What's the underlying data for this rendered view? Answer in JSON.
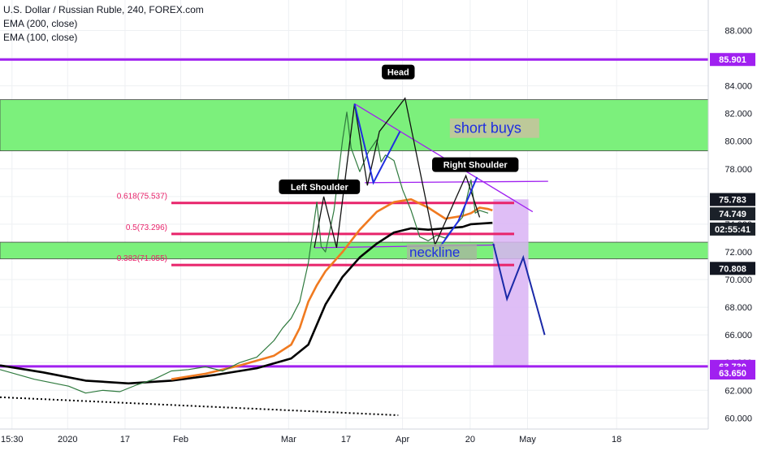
{
  "header": {
    "title": "U.S. Dollar / Russian Ruble, 240, FOREX.com",
    "indicators": [
      "EMA (200, close)",
      "EMA (100, close)"
    ]
  },
  "colors": {
    "zone_fill": "#7cf07c",
    "purple": "#a020f0",
    "pink": "#e8246b",
    "ema200": "#000000",
    "ema100": "#f07a20",
    "pattern": "#1f2ee0",
    "projection_fill": "#d9b3f5",
    "price_tag_dark": "#131722",
    "current_price": "#1b2129"
  },
  "chart_data": {
    "type": "line",
    "title": "U.S. Dollar / Russian Ruble, 240, FOREX.com",
    "ylim": [
      59.2,
      90.2
    ],
    "xlim": [
      0,
      82.7
    ],
    "y_ticks": [
      60,
      62,
      64,
      66,
      68,
      70,
      72,
      74,
      76,
      78,
      80,
      82,
      84,
      86,
      88
    ],
    "x_ticks": [
      {
        "label": "15:30",
        "x": 1.4
      },
      {
        "label": "2020",
        "x": 7.9
      },
      {
        "label": "17",
        "x": 14.6
      },
      {
        "label": "Feb",
        "x": 21.1
      },
      {
        "label": "Mar",
        "x": 33.7
      },
      {
        "label": "17",
        "x": 40.4
      },
      {
        "label": "Apr",
        "x": 47.0
      },
      {
        "label": "20",
        "x": 54.9
      },
      {
        "label": "May",
        "x": 61.6
      },
      {
        "label": "18",
        "x": 72.0
      }
    ],
    "grid": true,
    "series": [
      {
        "name": "EMA (200, close)",
        "x": [
          0,
          5,
          10,
          15,
          20,
          25,
          30,
          34,
          36,
          38,
          40,
          42,
          44,
          46,
          48,
          50,
          52,
          54,
          55,
          57.5
        ],
        "y": [
          63.8,
          63.3,
          62.7,
          62.5,
          62.7,
          63.1,
          63.6,
          64.3,
          65.3,
          68.2,
          70.2,
          71.6,
          72.6,
          73.4,
          73.7,
          73.6,
          73.7,
          73.8,
          74.0,
          74.1
        ]
      },
      {
        "name": "EMA (100, close)",
        "x": [
          20,
          24,
          28,
          32,
          34,
          35,
          36,
          37,
          38,
          40,
          42,
          44,
          46,
          48,
          50,
          52,
          54,
          55,
          56,
          57,
          57.5
        ],
        "y": [
          62.8,
          63.2,
          63.8,
          64.5,
          65.3,
          66.5,
          68.4,
          69.6,
          70.6,
          72.0,
          73.6,
          74.9,
          75.6,
          75.8,
          75.2,
          74.4,
          74.6,
          74.8,
          75.2,
          75.1,
          75.0
        ]
      },
      {
        "name": "USD/RUB",
        "x": [
          0,
          4,
          8,
          10,
          12,
          14,
          16,
          18,
          20,
          22,
          24,
          26,
          28,
          30,
          31,
          32,
          33,
          34,
          35,
          36,
          37,
          37.5,
          38,
          39,
          40,
          40.5,
          41,
          42,
          43,
          44,
          44.5,
          45,
          46,
          47,
          48,
          49,
          50,
          51,
          52,
          53,
          54,
          55,
          55.5,
          56,
          57
        ],
        "y": [
          63.5,
          62.8,
          62.3,
          61.8,
          62.0,
          61.9,
          62.4,
          62.8,
          63.4,
          63.5,
          63.7,
          63.4,
          64.0,
          64.4,
          65.0,
          65.6,
          66.5,
          67.2,
          68.4,
          71.2,
          75.6,
          72.4,
          72.0,
          75.0,
          80.1,
          82.1,
          79.5,
          77.8,
          79.2,
          80.1,
          78.5,
          79.0,
          78.6,
          76.5,
          75.0,
          73.1,
          72.8,
          73.2,
          73.0,
          73.8,
          74.5,
          77.2,
          74.8,
          75.0,
          74.8
        ]
      }
    ],
    "horizontal_levels": [
      {
        "kind": "purple",
        "price": 85.901
      },
      {
        "kind": "purple",
        "price": 63.73
      },
      {
        "kind": "fib",
        "price": 75.537,
        "label": "0.618(75.537)"
      },
      {
        "kind": "fib",
        "price": 73.296,
        "label": "0.5(73.296)"
      },
      {
        "kind": "fib",
        "price": 71.055,
        "label": "0.382(71.055)"
      }
    ],
    "zones": [
      {
        "y0": 79.3,
        "y1": 83.0
      },
      {
        "y0": 71.5,
        "y1": 72.7
      }
    ],
    "price_labels": [
      {
        "text": "85.901",
        "price": 85.901,
        "style": "purple"
      },
      {
        "text": "75.783",
        "price": 75.783,
        "style": "dark"
      },
      {
        "text": "74.749",
        "price": 74.749,
        "style": "current"
      },
      {
        "text": "02:55:41",
        "price": 73.65,
        "style": "current"
      },
      {
        "text": "70.808",
        "price": 70.808,
        "style": "dark"
      },
      {
        "text": "63.730",
        "price": 63.73,
        "style": "purple"
      },
      {
        "text": "63.650",
        "price": 63.25,
        "style": "purple"
      }
    ],
    "annotations": [
      {
        "text": "Head",
        "x": 46.5,
        "y": 85.0
      },
      {
        "text": "Left Shoulder",
        "x": 37.3,
        "y": 76.7
      },
      {
        "text": "Right Shoulder",
        "x": 55.5,
        "y": 78.3
      },
      {
        "text": "short buys",
        "x": 53.0,
        "y": 81.0
      },
      {
        "text": "neckline",
        "x": 47.8,
        "y": 72.0
      }
    ],
    "pattern_path": {
      "x": [
        36.7,
        37.8,
        39.3,
        41.4,
        42.9,
        44.3,
        47.3,
        50.8,
        54.4,
        56.0
      ],
      "y": [
        72.3,
        76.0,
        72.3,
        82.7,
        76.8,
        80.7,
        83.1,
        72.5,
        77.5,
        74.5
      ]
    },
    "blue_triangles": [
      {
        "x": [
          41.4,
          43.6,
          46.7
        ],
        "y": [
          82.7,
          77.0,
          80.7
        ]
      },
      {
        "x": [
          51.3,
          53.5,
          55.7
        ],
        "y": [
          72.3,
          74.2,
          77.4
        ]
      }
    ],
    "trendlines": [
      {
        "x": [
          41.4,
          62.2
        ],
        "y": [
          82.7,
          74.9
        ]
      },
      {
        "x": [
          42.6,
          64.0
        ],
        "y": [
          77.0,
          77.1
        ]
      },
      {
        "x": [
          36.7,
          57.8
        ],
        "y": [
          72.3,
          72.5
        ]
      },
      {
        "x": [
          0,
          46.5
        ],
        "y": [
          61.5,
          60.2
        ],
        "dotted": true
      }
    ],
    "projection": {
      "x": [
        57.6,
        61.7
      ],
      "y": [
        63.7,
        75.8
      ]
    },
    "projection_path": {
      "x": [
        57.6,
        59.2,
        61.1,
        63.6
      ],
      "y": [
        72.6,
        68.6,
        71.6,
        66.0
      ]
    }
  }
}
